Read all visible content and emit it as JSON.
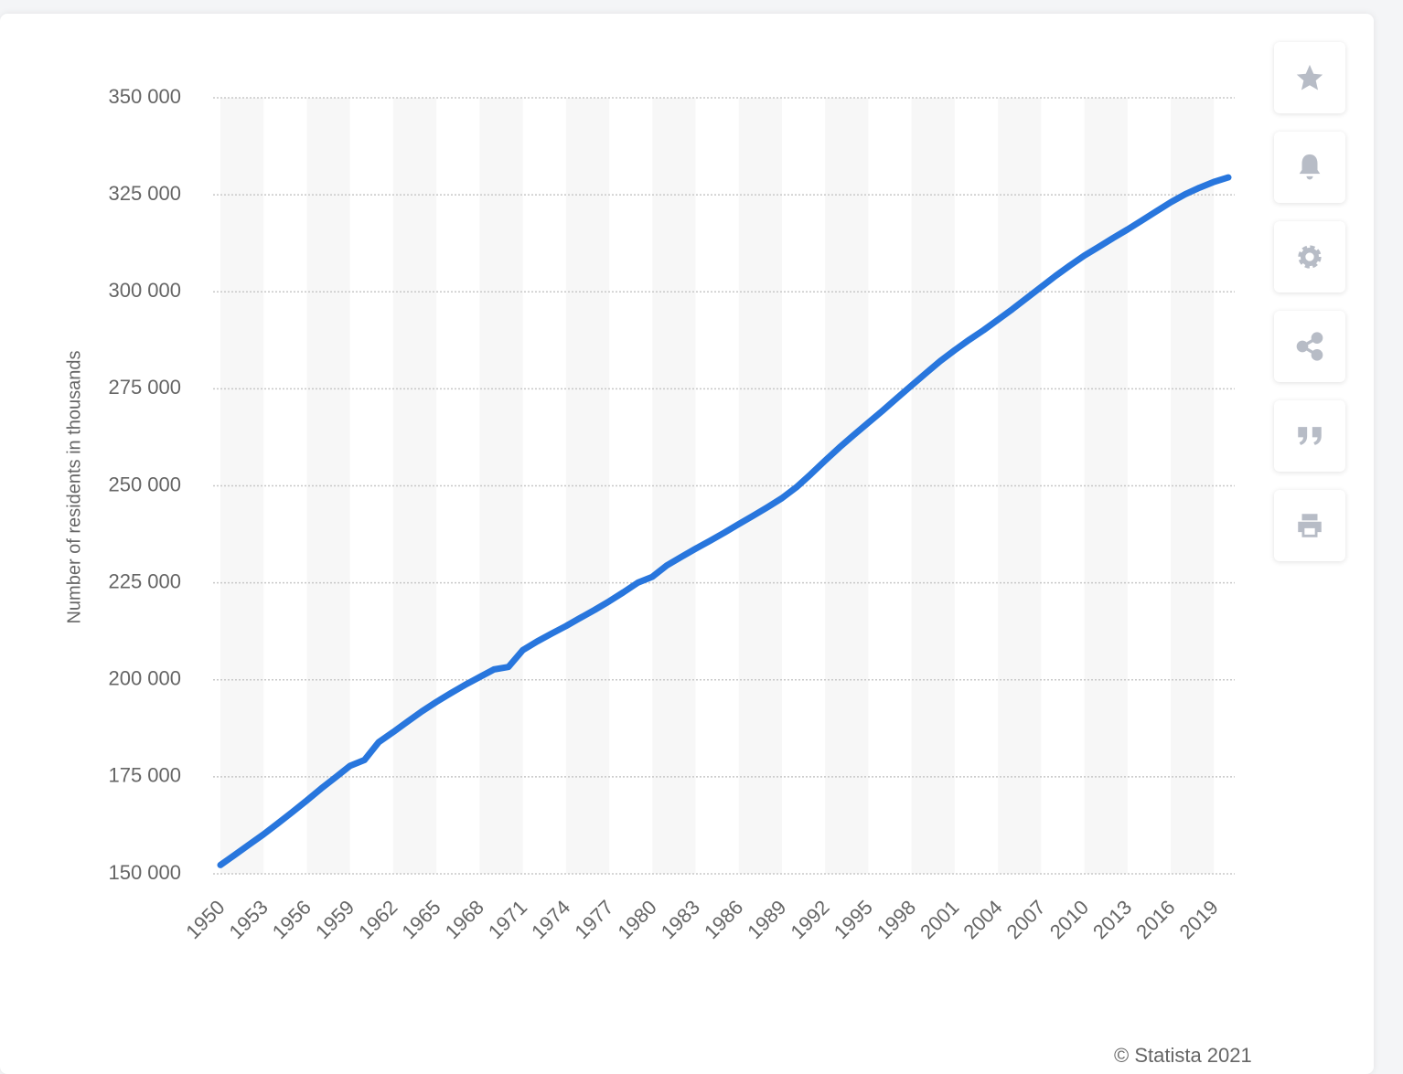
{
  "chart_data": {
    "type": "line",
    "y_axis_label": "Number of residents in thousands",
    "x": [
      1950,
      1951,
      1952,
      1953,
      1954,
      1955,
      1956,
      1957,
      1958,
      1959,
      1960,
      1961,
      1962,
      1963,
      1964,
      1965,
      1966,
      1967,
      1968,
      1969,
      1970,
      1971,
      1972,
      1973,
      1974,
      1975,
      1976,
      1977,
      1978,
      1979,
      1980,
      1981,
      1982,
      1983,
      1984,
      1985,
      1986,
      1987,
      1988,
      1989,
      1990,
      1991,
      1992,
      1993,
      1994,
      1995,
      1996,
      1997,
      1998,
      1999,
      2000,
      2001,
      2002,
      2003,
      2004,
      2005,
      2006,
      2007,
      2008,
      2009,
      2010,
      2011,
      2012,
      2013,
      2014,
      2015,
      2016,
      2017,
      2018,
      2019,
      2020
    ],
    "series": [
      {
        "color": "#2876dd",
        "values": [
          152271,
          154878,
          157553,
          160184,
          163026,
          165931,
          168903,
          171984,
          174882,
          177830,
          179323,
          183961,
          186538,
          189242,
          191889,
          194303,
          196560,
          198712,
          200706,
          202677,
          203302,
          207661,
          209896,
          211909,
          213854,
          215973,
          218035,
          220239,
          222585,
          225055,
          226546,
          229466,
          231664,
          233792,
          235825,
          237924,
          240133,
          242289,
          244499,
          246819,
          249623,
          252981,
          256514,
          259919,
          263126,
          266278,
          269394,
          272647,
          275854,
          279040,
          282162,
          284969,
          287625,
          290108,
          292805,
          295517,
          298380,
          301231,
          304094,
          306772,
          309327,
          311583,
          313878,
          316060,
          318386,
          320739,
          323072,
          325122,
          326838,
          328330,
          329484
        ]
      }
    ],
    "xlim": [
      1950,
      2020
    ],
    "xticks": [
      1950,
      1953,
      1956,
      1959,
      1962,
      1965,
      1968,
      1971,
      1974,
      1977,
      1980,
      1983,
      1986,
      1989,
      1992,
      1995,
      1998,
      2001,
      2004,
      2007,
      2010,
      2013,
      2016,
      2019
    ],
    "ylim": [
      150000,
      350000
    ],
    "yticks": [
      {
        "value": 150000,
        "label": "150 000"
      },
      {
        "value": 175000,
        "label": "175 000"
      },
      {
        "value": 200000,
        "label": "200 000"
      },
      {
        "value": 225000,
        "label": "225 000"
      },
      {
        "value": 250000,
        "label": "250 000"
      },
      {
        "value": 275000,
        "label": "275 000"
      },
      {
        "value": 300000,
        "label": "300 000"
      },
      {
        "value": 325000,
        "label": "325 000"
      },
      {
        "value": 350000,
        "label": "350 000"
      }
    ],
    "grid": true,
    "source": "© Statista 2021"
  }
}
